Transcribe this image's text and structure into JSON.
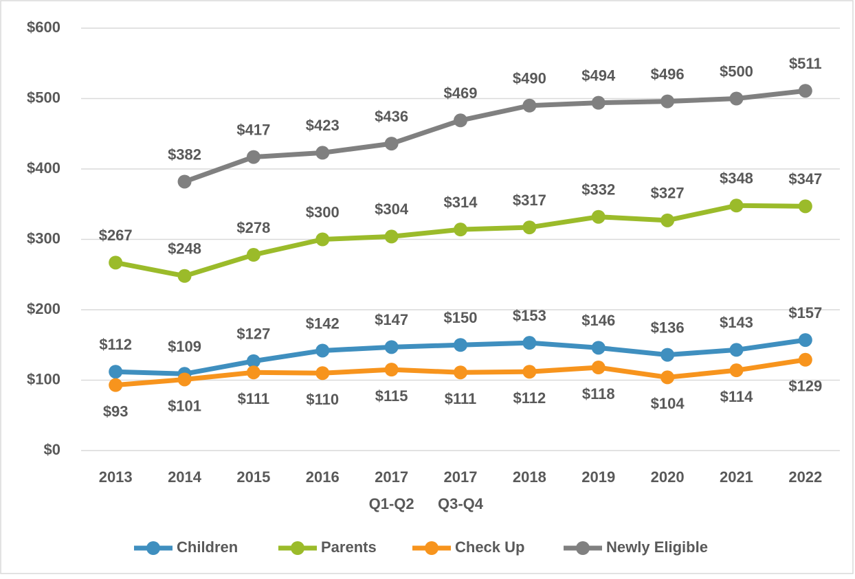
{
  "chart_data": {
    "type": "line",
    "categories": [
      [
        "2013"
      ],
      [
        "2014"
      ],
      [
        "2015"
      ],
      [
        "2016"
      ],
      [
        "2017",
        "Q1-Q2"
      ],
      [
        "2017",
        "Q3-Q4"
      ],
      [
        "2018"
      ],
      [
        "2019"
      ],
      [
        "2020"
      ],
      [
        "2021"
      ],
      [
        "2022"
      ]
    ],
    "series": [
      {
        "name": "Children",
        "color": "#3f8fbf",
        "values": [
          112,
          109,
          127,
          142,
          147,
          150,
          153,
          146,
          136,
          143,
          157
        ],
        "value_labels": [
          "$112",
          "$109",
          "$127",
          "$142",
          "$147",
          "$150",
          "$153",
          "$146",
          "$136",
          "$143",
          "$157"
        ]
      },
      {
        "name": "Parents",
        "color": "#9bbb2a",
        "values": [
          267,
          248,
          278,
          300,
          304,
          314,
          317,
          332,
          327,
          348,
          347
        ],
        "value_labels": [
          "$267",
          "$248",
          "$278",
          "$300",
          "$304",
          "$314",
          "$317",
          "$332",
          "$327",
          "$348",
          "$347"
        ]
      },
      {
        "name": "Check Up",
        "color": "#f7941d",
        "values": [
          93,
          101,
          111,
          110,
          115,
          111,
          112,
          118,
          104,
          114,
          129
        ],
        "value_labels": [
          "$93",
          "$101",
          "$111",
          "$110",
          "$115",
          "$111",
          "$112",
          "$118",
          "$104",
          "$114",
          "$129"
        ]
      },
      {
        "name": "Newly Eligible",
        "color": "#808080",
        "values": [
          null,
          382,
          417,
          423,
          436,
          469,
          490,
          494,
          496,
          500,
          511
        ],
        "value_labels": [
          null,
          "$382",
          "$417",
          "$423",
          "$436",
          "$469",
          "$490",
          "$494",
          "$496",
          "$500",
          "$511"
        ]
      }
    ],
    "ylim": [
      0,
      600
    ],
    "yticks": [
      {
        "value": 0,
        "label": "$0"
      },
      {
        "value": 100,
        "label": "$100"
      },
      {
        "value": 200,
        "label": "$200"
      },
      {
        "value": 300,
        "label": "$300"
      },
      {
        "value": 400,
        "label": "$400"
      },
      {
        "value": 500,
        "label": "$500"
      },
      {
        "value": 600,
        "label": "$600"
      }
    ],
    "grid": true,
    "legend": "bottom"
  }
}
